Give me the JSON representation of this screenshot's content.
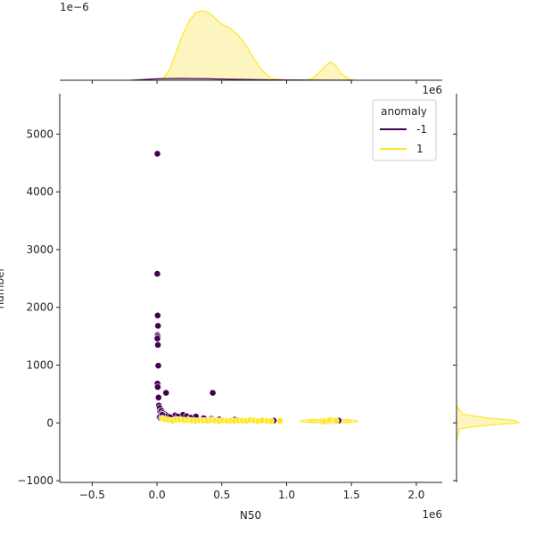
{
  "chart_data": {
    "type": "scatter",
    "xlabel": "N50",
    "ylabel": "number",
    "x_offset_text": "1e6",
    "top_offset_text": "1e−6",
    "right_offset_text": "1e6",
    "xlim": [
      -750000,
      2200000
    ],
    "ylim": [
      -1030,
      5700
    ],
    "xticks": [
      -500000,
      0,
      500000,
      1000000,
      1500000,
      2000000
    ],
    "xtick_labels": [
      "−0.5",
      "0.0",
      "0.5",
      "1.0",
      "1.5",
      "2.0"
    ],
    "yticks": [
      -1000,
      0,
      1000,
      2000,
      3000,
      4000,
      5000
    ],
    "ytick_labels": [
      "−1000",
      "0",
      "1000",
      "2000",
      "3000",
      "4000",
      "5000"
    ],
    "legend": {
      "title": "anomaly",
      "labels": [
        "-1",
        "1"
      ],
      "placement": "upper right"
    },
    "colors": {
      "anomaly_neg": "#440154",
      "anomaly_pos": "#fde725",
      "fill_pos": "#fdf5c0"
    },
    "series": [
      {
        "name": "-1",
        "points": [
          [
            3000,
            4660
          ],
          [
            2000,
            2580
          ],
          [
            5000,
            1860
          ],
          [
            8000,
            1680
          ],
          [
            4000,
            1520
          ],
          [
            6000,
            1490
          ],
          [
            3000,
            1460
          ],
          [
            7000,
            1350
          ],
          [
            10000,
            990
          ],
          [
            4000,
            680
          ],
          [
            6000,
            620
          ],
          [
            12000,
            440
          ],
          [
            70000,
            520
          ],
          [
            430000,
            520
          ],
          [
            15000,
            300
          ],
          [
            20000,
            260
          ],
          [
            25000,
            200
          ],
          [
            35000,
            210
          ],
          [
            45000,
            170
          ],
          [
            60000,
            150
          ],
          [
            50000,
            130
          ],
          [
            80000,
            120
          ],
          [
            140000,
            130
          ],
          [
            200000,
            140
          ],
          [
            230000,
            115
          ],
          [
            300000,
            110
          ],
          [
            360000,
            80
          ],
          [
            420000,
            70
          ],
          [
            480000,
            60
          ],
          [
            600000,
            55
          ],
          [
            750000,
            45
          ],
          [
            900000,
            40
          ],
          [
            1280000,
            30
          ],
          [
            1320000,
            25
          ],
          [
            1350000,
            35
          ],
          [
            1400000,
            40
          ],
          [
            20000,
            100
          ],
          [
            30000,
            80
          ],
          [
            40000,
            140
          ],
          [
            100000,
            100
          ],
          [
            160000,
            110
          ],
          [
            260000,
            90
          ]
        ]
      },
      {
        "name": "1",
        "points": [
          [
            40000,
            80
          ],
          [
            60000,
            60
          ],
          [
            90000,
            50
          ],
          [
            120000,
            40
          ],
          [
            150000,
            60
          ],
          [
            180000,
            55
          ],
          [
            210000,
            45
          ],
          [
            240000,
            50
          ],
          [
            270000,
            40
          ],
          [
            300000,
            35
          ],
          [
            330000,
            45
          ],
          [
            360000,
            40
          ],
          [
            390000,
            35
          ],
          [
            420000,
            50
          ],
          [
            450000,
            40
          ],
          [
            480000,
            30
          ],
          [
            510000,
            45
          ],
          [
            540000,
            35
          ],
          [
            570000,
            40
          ],
          [
            600000,
            30
          ],
          [
            630000,
            45
          ],
          [
            660000,
            40
          ],
          [
            690000,
            35
          ],
          [
            720000,
            50
          ],
          [
            750000,
            40
          ],
          [
            780000,
            30
          ],
          [
            810000,
            45
          ],
          [
            850000,
            35
          ],
          [
            880000,
            30
          ],
          [
            950000,
            35
          ],
          [
            1270000,
            30
          ],
          [
            1300000,
            40
          ],
          [
            1320000,
            35
          ],
          [
            1340000,
            30
          ],
          [
            1360000,
            45
          ],
          [
            1380000,
            35
          ],
          [
            1290000,
            25
          ],
          [
            1330000,
            50
          ]
        ]
      }
    ],
    "marginal_x": {
      "pos_curve": [
        [
          0,
          0.0
        ],
        [
          50000,
          0.02
        ],
        [
          100000,
          0.12
        ],
        [
          150000,
          0.3
        ],
        [
          200000,
          0.48
        ],
        [
          250000,
          0.62
        ],
        [
          300000,
          0.7
        ],
        [
          350000,
          0.72
        ],
        [
          400000,
          0.7
        ],
        [
          450000,
          0.64
        ],
        [
          500000,
          0.58
        ],
        [
          550000,
          0.55
        ],
        [
          600000,
          0.5
        ],
        [
          650000,
          0.43
        ],
        [
          700000,
          0.33
        ],
        [
          750000,
          0.22
        ],
        [
          800000,
          0.12
        ],
        [
          850000,
          0.05
        ],
        [
          900000,
          0.015
        ],
        [
          1000000,
          0.0
        ],
        [
          1150000,
          0.0
        ],
        [
          1200000,
          0.02
        ],
        [
          1250000,
          0.08
        ],
        [
          1300000,
          0.15
        ],
        [
          1340000,
          0.19
        ],
        [
          1380000,
          0.15
        ],
        [
          1420000,
          0.07
        ],
        [
          1480000,
          0.01
        ],
        [
          1550000,
          0.0
        ]
      ],
      "neg_curve": [
        [
          -200000,
          0.0
        ],
        [
          0,
          0.008
        ],
        [
          200000,
          0.01
        ],
        [
          400000,
          0.008
        ],
        [
          600000,
          0.005
        ],
        [
          900000,
          0.002
        ],
        [
          1200000,
          0.001
        ],
        [
          1500000,
          0.0
        ]
      ]
    },
    "marginal_y": {
      "pos_curve": [
        [
          -300,
          0.0
        ],
        [
          -100,
          0.05
        ],
        [
          -50,
          0.4
        ],
        [
          0,
          1.0
        ],
        [
          40,
          0.95
        ],
        [
          80,
          0.55
        ],
        [
          150,
          0.1
        ],
        [
          300,
          0.0
        ]
      ]
    },
    "joint_kde_blob": {
      "center_x": 1330000,
      "center_y": 30,
      "width_x": 450000,
      "height_y": 60
    }
  }
}
